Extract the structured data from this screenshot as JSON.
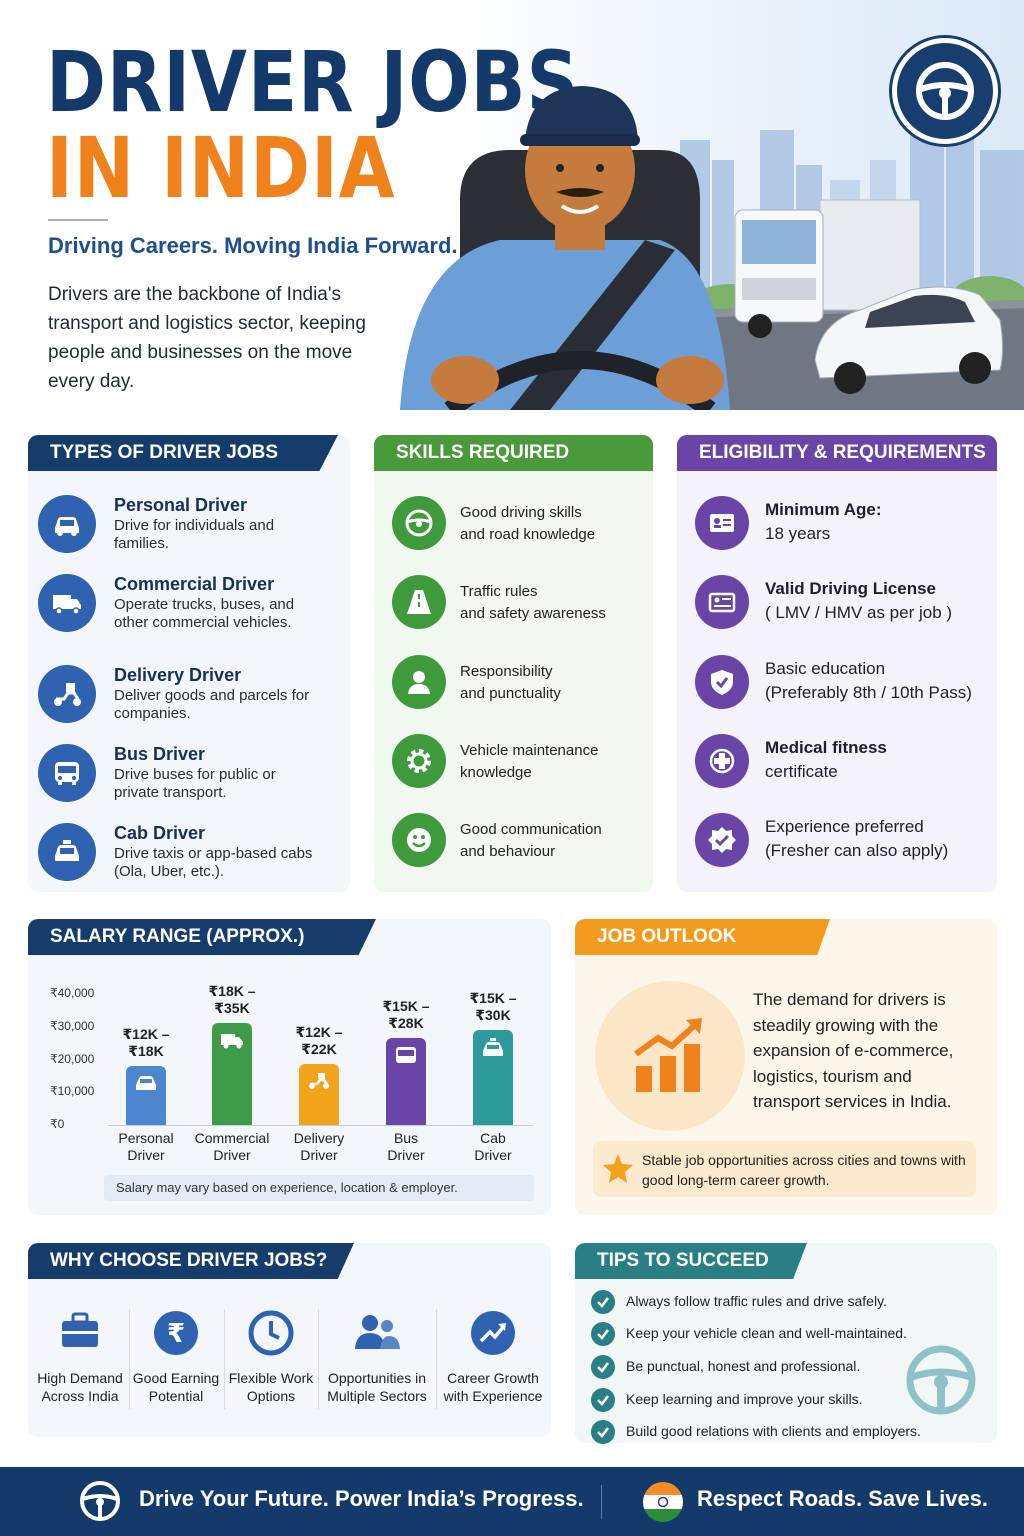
{
  "hero": {
    "title_line1": "DRIVER JOBS",
    "title_line2": "IN INDIA",
    "tagline": "Driving Careers. Moving India Forward.",
    "intro": "Drivers are the backbone of India's transport and logistics sector, keeping people and businesses on the move every day.",
    "badge_icon": "steering-wheel-icon"
  },
  "colors": {
    "navy": "#133a6b",
    "orange": "#f0821e",
    "green": "#4a9a3c",
    "purple": "#6a45a8",
    "teal": "#2a7f84"
  },
  "types": {
    "heading": "TYPES OF DRIVER JOBS",
    "items": [
      {
        "title": "Personal Driver",
        "desc": "Drive for individuals and families.",
        "icon": "car-icon"
      },
      {
        "title": "Commercial Driver",
        "desc": "Operate trucks, buses, and other commercial vehicles.",
        "icon": "truck-icon"
      },
      {
        "title": "Delivery Driver",
        "desc": "Deliver goods and parcels for companies.",
        "icon": "scooter-icon"
      },
      {
        "title": "Bus Driver",
        "desc": "Drive buses for public or private transport.",
        "icon": "bus-icon"
      },
      {
        "title": "Cab Driver",
        "desc": "Drive taxis or app-based cabs (Ola, Uber, etc.).",
        "icon": "taxi-icon"
      }
    ]
  },
  "skills": {
    "heading": "SKILLS REQUIRED",
    "items": [
      {
        "line1": "Good driving skills",
        "line2": "and road knowledge",
        "icon": "steering-wheel-icon"
      },
      {
        "line1": "Traffic rules",
        "line2": "and safety awareness",
        "icon": "road-icon"
      },
      {
        "line1": "Responsibility",
        "line2": "and punctuality",
        "icon": "person-icon"
      },
      {
        "line1": "Vehicle maintenance",
        "line2": "knowledge",
        "icon": "gear-icon"
      },
      {
        "line1": "Good communication",
        "line2": "and behaviour",
        "icon": "smile-icon"
      }
    ]
  },
  "eligibility": {
    "heading": "ELIGIBILITY & REQUIREMENTS",
    "items": [
      {
        "line1": "Minimum Age:",
        "line2": "18 years",
        "icon": "id-card-icon"
      },
      {
        "line1": "Valid Driving License",
        "line2": "( LMV / HMV as per job )",
        "icon": "license-icon"
      },
      {
        "line1": "Basic education",
        "line2": "(Preferably 8th / 10th Pass)",
        "icon": "shield-icon"
      },
      {
        "line1": "Medical fitness",
        "line2": "certificate",
        "icon": "medical-cross-icon"
      },
      {
        "line1": "Experience preferred",
        "line2": "(Fresher can also apply)",
        "icon": "badge-check-icon"
      }
    ]
  },
  "salary": {
    "heading": "SALARY RANGE (APPROX.)",
    "note": "Salary may vary based on experience, location & employer."
  },
  "chart_data": {
    "type": "bar",
    "title": "SALARY RANGE (APPROX.)",
    "y_ticks": [
      "₹40,000",
      "₹30,000",
      "₹20,000",
      "₹10,000",
      "₹0"
    ],
    "ylim": [
      0,
      40000
    ],
    "categories": [
      "Personal Driver",
      "Commercial Driver",
      "Delivery Driver",
      "Bus Driver",
      "Cab Driver"
    ],
    "category_lines": [
      [
        "Personal",
        "Driver"
      ],
      [
        "Commercial",
        "Driver"
      ],
      [
        "Delivery",
        "Driver"
      ],
      [
        "Bus",
        "Driver"
      ],
      [
        "Cab",
        "Driver"
      ]
    ],
    "values": [
      18000,
      31000,
      18500,
      26500,
      29000
    ],
    "ranges": [
      [
        12000,
        18000
      ],
      [
        18000,
        35000
      ],
      [
        12000,
        22000
      ],
      [
        15000,
        28000
      ],
      [
        15000,
        30000
      ]
    ],
    "labels": [
      [
        "₹12K –",
        "₹18K"
      ],
      [
        "₹18K –",
        "₹35K"
      ],
      [
        "₹12K –",
        "₹22K"
      ],
      [
        "₹15K –",
        "₹28K"
      ],
      [
        "₹15K –",
        "₹30K"
      ]
    ],
    "colors": [
      "#4b86cf",
      "#3f9a4a",
      "#f2a41c",
      "#6a45a8",
      "#2e9b9b"
    ],
    "icons": [
      "car-icon",
      "truck-icon",
      "scooter-icon",
      "bus-icon",
      "taxi-icon"
    ],
    "grid": true
  },
  "outlook": {
    "heading": "JOB OUTLOOK",
    "text": "The demand for drivers is steadily growing with the expansion of e-commerce, logistics, tourism and transport services in India.",
    "note": "Stable job opportunities across cities and towns with good long-term career growth.",
    "icon": "growth-chart-icon"
  },
  "why": {
    "heading": "WHY CHOOSE DRIVER JOBS?",
    "items": [
      {
        "line1": "High Demand",
        "line2": "Across India",
        "icon": "briefcase-icon"
      },
      {
        "line1": "Good Earning",
        "line2": "Potential",
        "icon": "rupee-icon"
      },
      {
        "line1": "Flexible Work",
        "line2": "Options",
        "icon": "clock-icon"
      },
      {
        "line1": "Opportunities in",
        "line2": "Multiple Sectors",
        "icon": "people-icon"
      },
      {
        "line1": "Career Growth",
        "line2": "with Experience",
        "icon": "trend-up-icon"
      }
    ]
  },
  "tips": {
    "heading": "TIPS TO SUCCEED",
    "items": [
      "Always follow traffic rules and drive safely.",
      "Keep your vehicle clean and well-maintained.",
      "Be punctual, honest and professional.",
      "Keep learning and improve your skills.",
      "Build good relations with clients and employers."
    ]
  },
  "footer": {
    "left": "Drive Your Future. Power India’s Progress.",
    "right": "Respect Roads. Save Lives."
  }
}
